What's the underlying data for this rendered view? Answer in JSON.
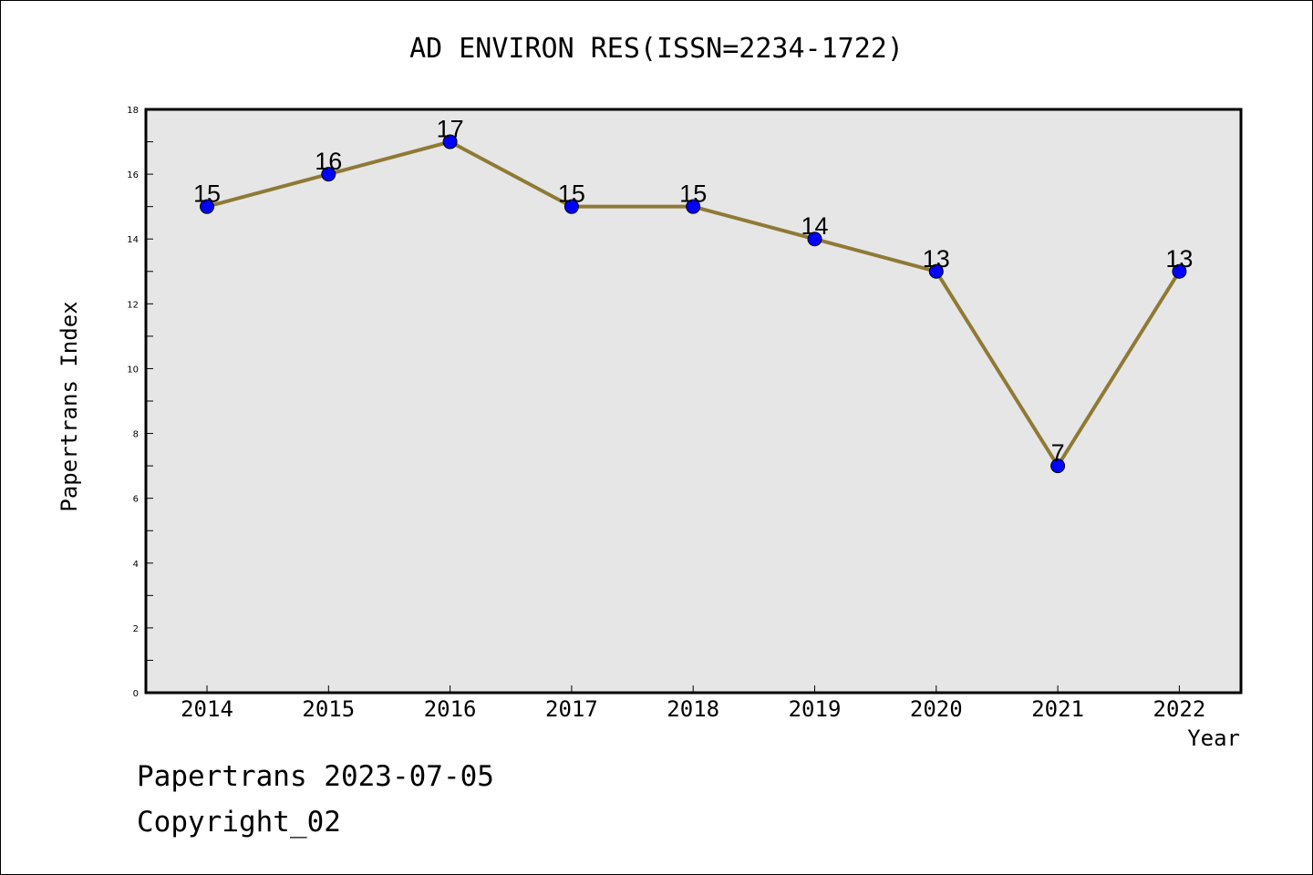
{
  "chart_data": {
    "type": "line",
    "title": "AD ENVIRON RES(ISSN=2234-1722)",
    "xlabel": "Year",
    "ylabel": "Papertrans Index",
    "categories": [
      "2014",
      "2015",
      "2016",
      "2017",
      "2018",
      "2019",
      "2020",
      "2021",
      "2022"
    ],
    "series": [
      {
        "values": [
          15,
          16,
          17,
          15,
          15,
          14,
          13,
          7,
          13
        ]
      }
    ],
    "data_labels": [
      "15",
      "16",
      "17",
      "15",
      "15",
      "14",
      "13",
      "7",
      "13"
    ],
    "ylim": [
      0,
      18
    ],
    "yticks": [
      "0",
      "2",
      "4",
      "6",
      "8",
      "10",
      "12",
      "14",
      "16",
      "18"
    ],
    "grid": false,
    "colors": {
      "line": "#8f7a35",
      "marker": "#0000ff",
      "plot_background": "#e6e6e6"
    }
  },
  "footer": {
    "line1": "Papertrans 2023-07-05",
    "line2": "Copyright_02"
  }
}
